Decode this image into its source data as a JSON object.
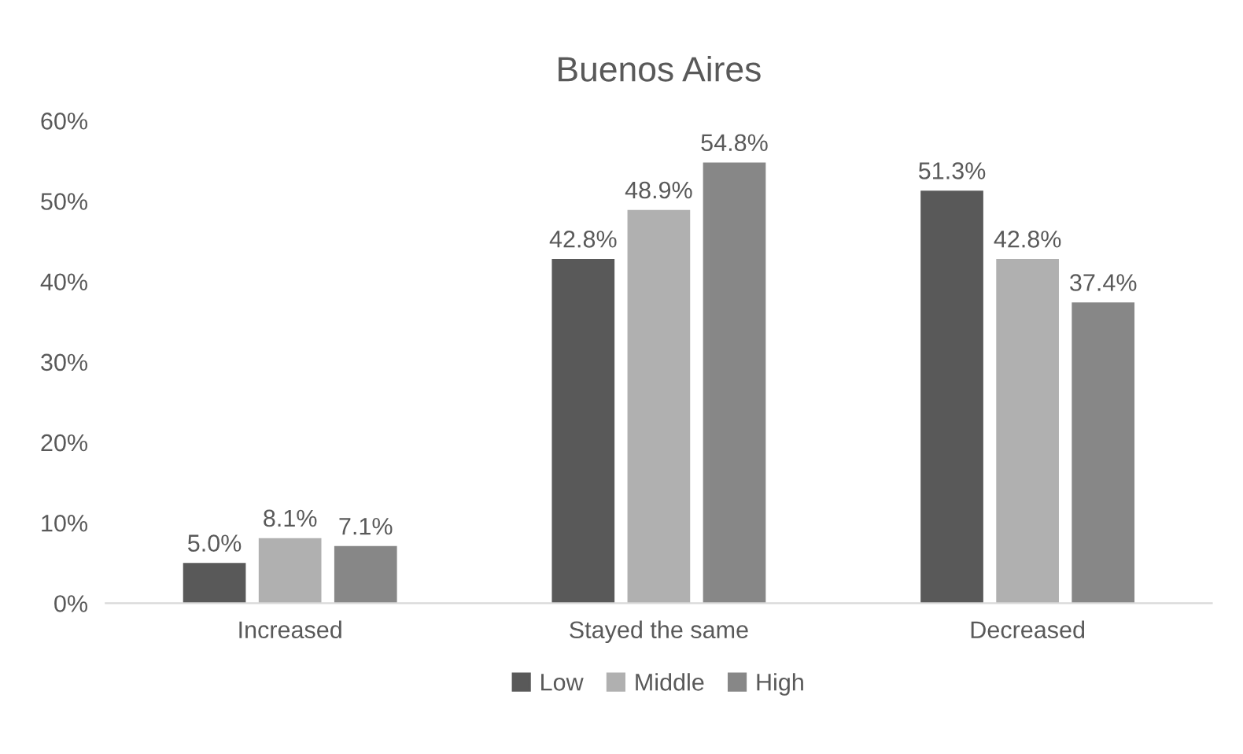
{
  "chart_data": {
    "type": "bar",
    "title": "Buenos Aires",
    "categories": [
      "Increased",
      "Stayed the same",
      "Decreased"
    ],
    "series": [
      {
        "name": "Low",
        "color": "#595959",
        "values": [
          5.0,
          42.8,
          51.3
        ],
        "value_labels": [
          "5.0%",
          "42.8%",
          "51.3%"
        ]
      },
      {
        "name": "Middle",
        "color": "#b0b0b0",
        "values": [
          8.1,
          48.9,
          42.8
        ],
        "value_labels": [
          "8.1%",
          "48.9%",
          "42.8%"
        ]
      },
      {
        "name": "High",
        "color": "#878787",
        "values": [
          7.1,
          54.8,
          37.4
        ],
        "value_labels": [
          "7.1%",
          "54.8%",
          "37.4%"
        ]
      }
    ],
    "ylim": [
      0,
      60
    ],
    "yticks": [
      {
        "value": 0,
        "label": "0%"
      },
      {
        "value": 10,
        "label": "10%"
      },
      {
        "value": 20,
        "label": "20%"
      },
      {
        "value": 30,
        "label": "30%"
      },
      {
        "value": 40,
        "label": "40%"
      },
      {
        "value": 50,
        "label": "50%"
      },
      {
        "value": 60,
        "label": "60%"
      }
    ],
    "grid": false,
    "legend": "bottom"
  }
}
